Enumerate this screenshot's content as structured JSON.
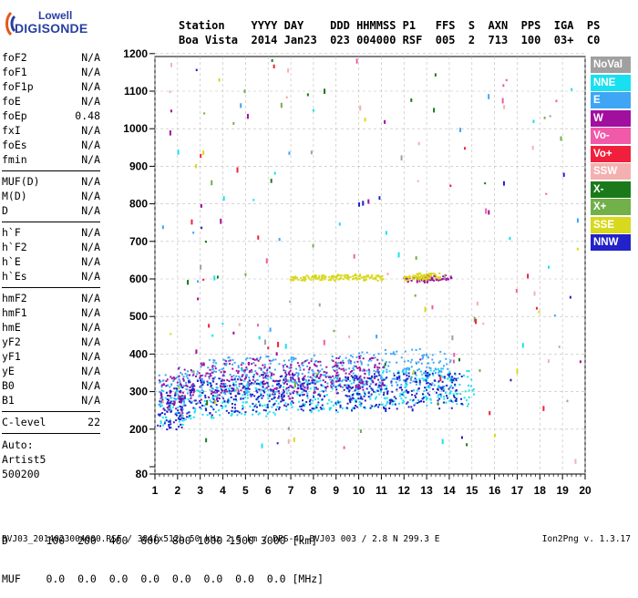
{
  "logo": {
    "top": "Lowell",
    "bottom": "DIGISONDE"
  },
  "header": {
    "line1": "Station    YYYY DAY    DDD HHMMSS P1   FFS  S  AXN  PPS  IGA  PS",
    "line2": "Boa Vista  2014 Jan23  023 004000 RSF  005  2  713  100  03+  C0"
  },
  "params": {
    "group1": [
      {
        "label": "foF2",
        "value": "N/A"
      },
      {
        "label": "foF1",
        "value": "N/A"
      },
      {
        "label": "foF1p",
        "value": "N/A"
      },
      {
        "label": "foE",
        "value": "N/A"
      },
      {
        "label": "foEp",
        "value": "0.48"
      },
      {
        "label": "fxI",
        "value": "N/A"
      },
      {
        "label": "foEs",
        "value": "N/A"
      },
      {
        "label": "fmin",
        "value": "N/A"
      }
    ],
    "group2": [
      {
        "label": "MUF(D)",
        "value": "N/A"
      },
      {
        "label": "M(D)",
        "value": "N/A"
      },
      {
        "label": "D",
        "value": "N/A"
      }
    ],
    "group3": [
      {
        "label": "h`F",
        "value": "N/A"
      },
      {
        "label": "h`F2",
        "value": "N/A"
      },
      {
        "label": "h`E",
        "value": "N/A"
      },
      {
        "label": "h`Es",
        "value": "N/A"
      }
    ],
    "group4": [
      {
        "label": "hmF2",
        "value": "N/A"
      },
      {
        "label": "hmF1",
        "value": "N/A"
      },
      {
        "label": "hmE",
        "value": "N/A"
      },
      {
        "label": "yF2",
        "value": "N/A"
      },
      {
        "label": "yF1",
        "value": "N/A"
      },
      {
        "label": "yE",
        "value": "N/A"
      },
      {
        "label": "B0",
        "value": "N/A"
      },
      {
        "label": "B1",
        "value": "N/A"
      }
    ],
    "group5": [
      {
        "label": "C-level",
        "value": "22"
      }
    ]
  },
  "auto": [
    "Auto:",
    "Artist5",
    "500200"
  ],
  "bottom_table": {
    "row1": "D      100  200  400  600  800 1000 1500 3000 [km]",
    "row2": "MUF    0.0  0.0  0.0  0.0  0.0  0.0  0.0  0.0 [MHz]"
  },
  "footer": "BVJ03_2014023004000.RSF / 384fx512h 50 kHz 2.5 km / DPS-4D BVJ03 003 / 2.8 N 299.3 E",
  "footer_right": "Ion2Png v. 1.3.17",
  "legend": [
    {
      "label": "NoVal",
      "color": "#a0a0a0"
    },
    {
      "label": "NNE",
      "color": "#19e0f0"
    },
    {
      "label": "E",
      "color": "#3ea6f5"
    },
    {
      "label": "W",
      "color": "#a10f9f"
    },
    {
      "label": "Vo-",
      "color": "#f05aa8"
    },
    {
      "label": "Vo+",
      "color": "#f0203c"
    },
    {
      "label": "SSW",
      "color": "#f4b0b0"
    },
    {
      "label": "X-",
      "color": "#1a7a1a"
    },
    {
      "label": "X+",
      "color": "#72b04a"
    },
    {
      "label": "SSE",
      "color": "#d8d81e"
    },
    {
      "label": "NNW",
      "color": "#2222c8"
    }
  ],
  "chart_data": {
    "type": "scatter",
    "title": "",
    "xlabel": "",
    "ylabel": "",
    "xlim": [
      1,
      20
    ],
    "ylim": [
      80,
      1200
    ],
    "x_ticks": [
      1,
      2,
      3,
      4,
      5,
      6,
      7,
      8,
      9,
      10,
      11,
      12,
      13,
      14,
      15,
      16,
      17,
      18,
      19,
      20
    ],
    "y_ticks": [
      80,
      100,
      200,
      300,
      400,
      500,
      600,
      700,
      800,
      900,
      1000,
      1100,
      1200
    ],
    "grid": true,
    "legend_position": "right",
    "series": [
      {
        "name": "NNE",
        "color": "#19e0f0",
        "trace": "F-layer echo band",
        "x": [
          1.7,
          2.5,
          3.5,
          4.5,
          5.5,
          6.5,
          7.5,
          8.5,
          9.5,
          10.5,
          11.5,
          12.5,
          13.5,
          14.5
        ],
        "y": [
          260,
          270,
          280,
          285,
          285,
          290,
          295,
          295,
          300,
          305,
          310,
          310,
          315,
          310
        ]
      },
      {
        "name": "E",
        "color": "#3ea6f5",
        "trace": "F-layer echo band",
        "x": [
          1.7,
          2.5,
          3.5,
          4.5,
          5.5,
          6.5,
          7.5,
          8.5,
          9.5,
          10.5,
          11.5,
          12.5,
          13.5
        ],
        "y": [
          300,
          320,
          340,
          345,
          350,
          345,
          345,
          350,
          350,
          360,
          365,
          370,
          360
        ]
      },
      {
        "name": "W",
        "color": "#a10f9f",
        "trace": "F-layer echo band",
        "x": [
          1.7,
          2.5,
          3.5,
          4.5,
          5.5,
          6.5,
          7.5,
          8.5,
          9.5,
          10.5,
          12.5,
          13.5
        ],
        "y": [
          300,
          320,
          330,
          340,
          345,
          330,
          340,
          340,
          345,
          350,
          600,
          605
        ]
      },
      {
        "name": "NNW",
        "color": "#2222c8",
        "trace": "lower trace",
        "x": [
          1.6,
          2.0,
          3.0,
          4.0,
          5.0,
          6.0,
          7.0,
          8.0,
          9.5,
          10.0,
          11.0,
          12.0,
          13.0,
          14.0
        ],
        "y": [
          250,
          270,
          285,
          290,
          295,
          300,
          300,
          300,
          300,
          300,
          305,
          305,
          310,
          305
        ]
      },
      {
        "name": "SSE",
        "color": "#d8d81e",
        "trace": "second hop",
        "x": [
          7.5,
          8.5,
          9.5,
          10.5,
          12.5,
          13.0
        ],
        "y": [
          605,
          605,
          608,
          605,
          605,
          610
        ]
      }
    ]
  }
}
